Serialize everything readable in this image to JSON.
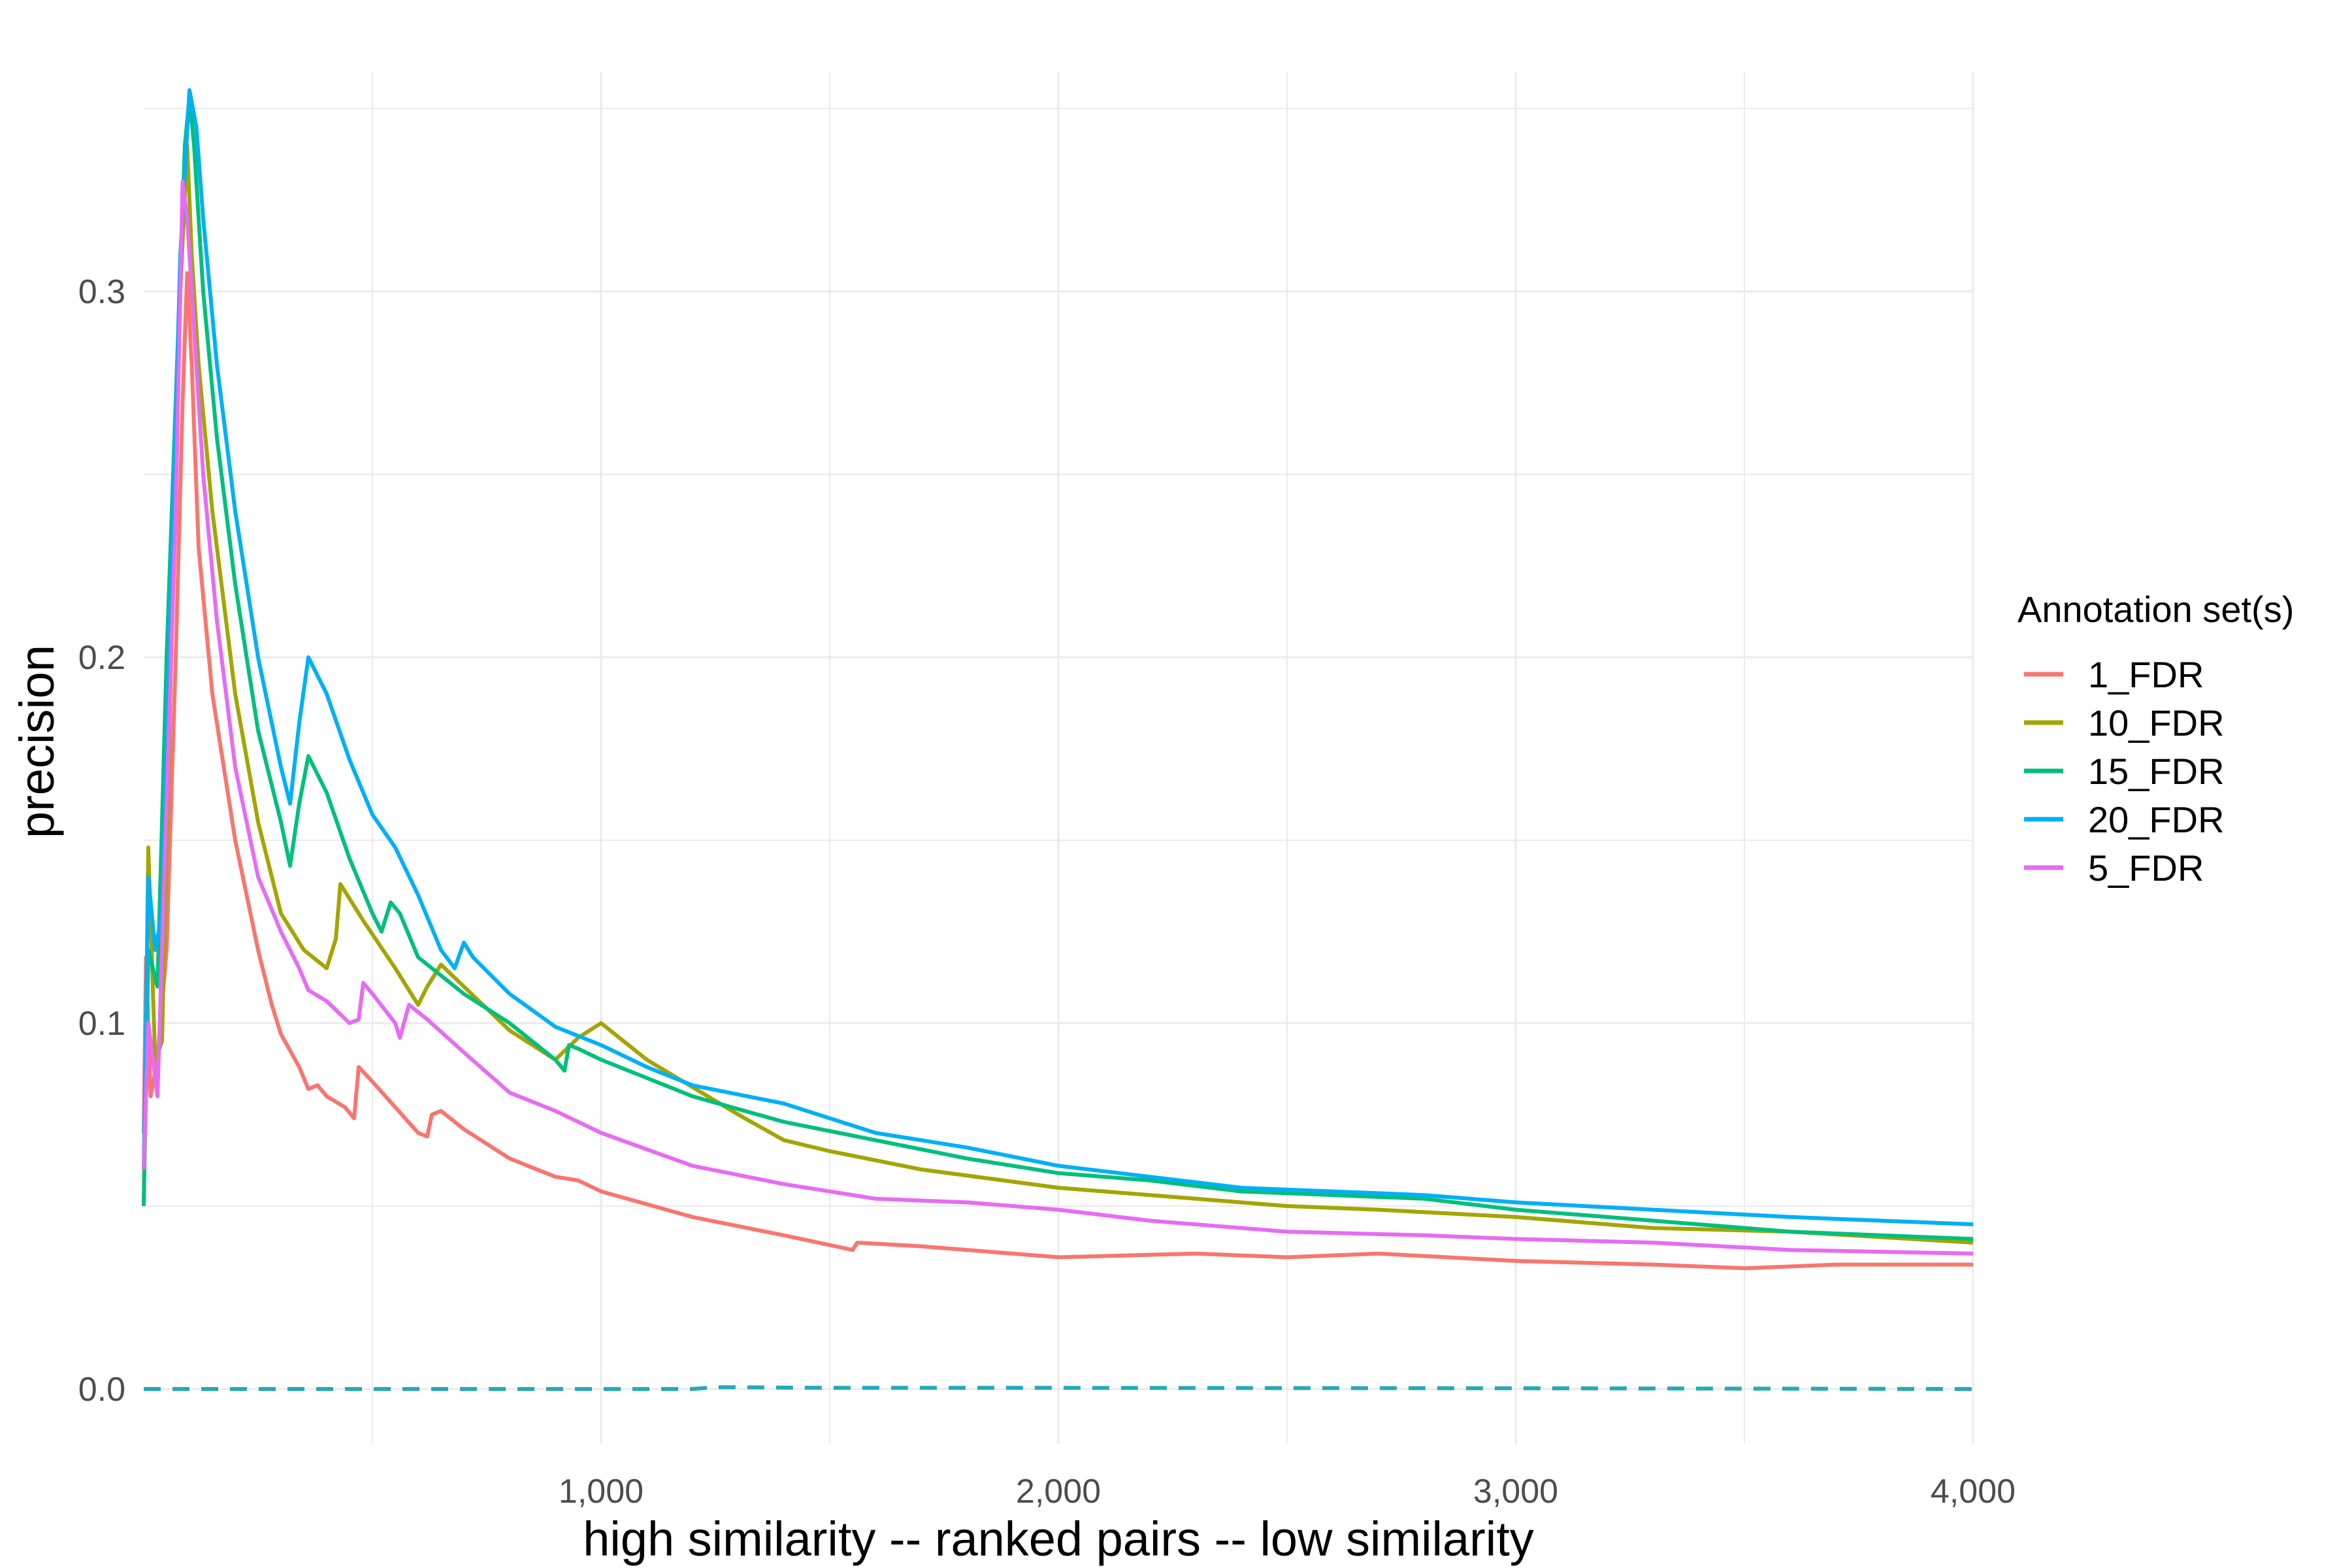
{
  "chart_data": {
    "type": "line",
    "title": "",
    "xlabel": "high similarity -- ranked pairs -- low similarity",
    "ylabel": "precision",
    "xlim": [
      0,
      4000
    ],
    "ylim": [
      -0.015,
      0.36
    ],
    "x_ticks": [
      1000,
      2000,
      3000,
      4000
    ],
    "x_tick_labels": [
      "1,000",
      "2,000",
      "3,000",
      "4,000"
    ],
    "y_ticks": [
      0.0,
      0.1,
      0.2,
      0.3
    ],
    "y_tick_labels": [
      "0.0",
      "0.1",
      "0.2",
      "0.3"
    ],
    "grid": true,
    "legend": {
      "title": "Annotation set(s)",
      "position": "right",
      "entries": [
        "1_FDR",
        "10_FDR",
        "15_FDR",
        "20_FDR",
        "5_FDR"
      ]
    },
    "series": [
      {
        "name": "1_FDR",
        "color": "#F8766D",
        "points": [
          [
            0,
            0.07
          ],
          [
            5,
            0.118
          ],
          [
            15,
            0.08
          ],
          [
            30,
            0.09
          ],
          [
            50,
            0.12
          ],
          [
            70,
            0.2
          ],
          [
            85,
            0.27
          ],
          [
            95,
            0.305
          ],
          [
            105,
            0.28
          ],
          [
            120,
            0.23
          ],
          [
            150,
            0.19
          ],
          [
            200,
            0.15
          ],
          [
            250,
            0.12
          ],
          [
            280,
            0.105
          ],
          [
            300,
            0.097
          ],
          [
            340,
            0.088
          ],
          [
            360,
            0.082
          ],
          [
            380,
            0.083
          ],
          [
            400,
            0.08
          ],
          [
            440,
            0.077
          ],
          [
            460,
            0.074
          ],
          [
            470,
            0.088
          ],
          [
            500,
            0.084
          ],
          [
            550,
            0.077
          ],
          [
            600,
            0.07
          ],
          [
            620,
            0.069
          ],
          [
            630,
            0.075
          ],
          [
            650,
            0.076
          ],
          [
            700,
            0.071
          ],
          [
            800,
            0.063
          ],
          [
            900,
            0.058
          ],
          [
            950,
            0.057
          ],
          [
            1000,
            0.054
          ],
          [
            1200,
            0.047
          ],
          [
            1400,
            0.042
          ],
          [
            1550,
            0.038
          ],
          [
            1560,
            0.04
          ],
          [
            1700,
            0.039
          ],
          [
            2000,
            0.036
          ],
          [
            2300,
            0.037
          ],
          [
            2500,
            0.036
          ],
          [
            2700,
            0.037
          ],
          [
            3000,
            0.035
          ],
          [
            3300,
            0.034
          ],
          [
            3500,
            0.033
          ],
          [
            3700,
            0.034
          ],
          [
            4000,
            0.034
          ]
        ]
      },
      {
        "name": "10_FDR",
        "color": "#A3A500",
        "points": [
          [
            0,
            0.05
          ],
          [
            10,
            0.148
          ],
          [
            25,
            0.09
          ],
          [
            40,
            0.095
          ],
          [
            60,
            0.2
          ],
          [
            80,
            0.3
          ],
          [
            95,
            0.34
          ],
          [
            105,
            0.31
          ],
          [
            120,
            0.28
          ],
          [
            150,
            0.24
          ],
          [
            200,
            0.19
          ],
          [
            250,
            0.155
          ],
          [
            300,
            0.13
          ],
          [
            350,
            0.12
          ],
          [
            400,
            0.115
          ],
          [
            420,
            0.123
          ],
          [
            430,
            0.138
          ],
          [
            480,
            0.128
          ],
          [
            550,
            0.115
          ],
          [
            600,
            0.105
          ],
          [
            620,
            0.11
          ],
          [
            650,
            0.116
          ],
          [
            700,
            0.11
          ],
          [
            800,
            0.098
          ],
          [
            900,
            0.09
          ],
          [
            950,
            0.096
          ],
          [
            1000,
            0.1
          ],
          [
            1100,
            0.09
          ],
          [
            1300,
            0.075
          ],
          [
            1400,
            0.068
          ],
          [
            1500,
            0.065
          ],
          [
            1700,
            0.06
          ],
          [
            2000,
            0.055
          ],
          [
            2300,
            0.052
          ],
          [
            2500,
            0.05
          ],
          [
            2700,
            0.049
          ],
          [
            3000,
            0.047
          ],
          [
            3300,
            0.044
          ],
          [
            3600,
            0.043
          ],
          [
            4000,
            0.04
          ]
        ]
      },
      {
        "name": "15_FDR",
        "color": "#00BF7D",
        "points": [
          [
            0,
            0.05
          ],
          [
            10,
            0.12
          ],
          [
            30,
            0.11
          ],
          [
            50,
            0.2
          ],
          [
            70,
            0.27
          ],
          [
            90,
            0.34
          ],
          [
            100,
            0.353
          ],
          [
            110,
            0.34
          ],
          [
            130,
            0.3
          ],
          [
            160,
            0.26
          ],
          [
            200,
            0.22
          ],
          [
            250,
            0.18
          ],
          [
            300,
            0.155
          ],
          [
            320,
            0.143
          ],
          [
            340,
            0.16
          ],
          [
            360,
            0.173
          ],
          [
            400,
            0.163
          ],
          [
            450,
            0.145
          ],
          [
            500,
            0.13
          ],
          [
            520,
            0.125
          ],
          [
            540,
            0.133
          ],
          [
            560,
            0.13
          ],
          [
            600,
            0.118
          ],
          [
            700,
            0.108
          ],
          [
            800,
            0.1
          ],
          [
            900,
            0.09
          ],
          [
            920,
            0.087
          ],
          [
            930,
            0.094
          ],
          [
            950,
            0.093
          ],
          [
            1000,
            0.09
          ],
          [
            1100,
            0.085
          ],
          [
            1200,
            0.08
          ],
          [
            1400,
            0.073
          ],
          [
            1600,
            0.068
          ],
          [
            1800,
            0.063
          ],
          [
            2000,
            0.059
          ],
          [
            2200,
            0.057
          ],
          [
            2400,
            0.054
          ],
          [
            2600,
            0.053
          ],
          [
            2800,
            0.052
          ],
          [
            3000,
            0.049
          ],
          [
            3300,
            0.046
          ],
          [
            3600,
            0.043
          ],
          [
            4000,
            0.041
          ]
        ]
      },
      {
        "name": "20_FDR",
        "color": "#00B0F6",
        "points": [
          [
            0,
            0.06
          ],
          [
            10,
            0.14
          ],
          [
            25,
            0.12
          ],
          [
            40,
            0.13
          ],
          [
            60,
            0.22
          ],
          [
            80,
            0.31
          ],
          [
            100,
            0.355
          ],
          [
            115,
            0.345
          ],
          [
            130,
            0.32
          ],
          [
            160,
            0.28
          ],
          [
            200,
            0.24
          ],
          [
            250,
            0.2
          ],
          [
            300,
            0.17
          ],
          [
            320,
            0.16
          ],
          [
            340,
            0.182
          ],
          [
            360,
            0.2
          ],
          [
            400,
            0.19
          ],
          [
            450,
            0.172
          ],
          [
            500,
            0.157
          ],
          [
            550,
            0.148
          ],
          [
            600,
            0.135
          ],
          [
            650,
            0.12
          ],
          [
            680,
            0.115
          ],
          [
            700,
            0.122
          ],
          [
            720,
            0.118
          ],
          [
            800,
            0.108
          ],
          [
            900,
            0.099
          ],
          [
            1000,
            0.094
          ],
          [
            1100,
            0.088
          ],
          [
            1200,
            0.083
          ],
          [
            1400,
            0.078
          ],
          [
            1600,
            0.07
          ],
          [
            1800,
            0.066
          ],
          [
            2000,
            0.061
          ],
          [
            2200,
            0.058
          ],
          [
            2400,
            0.055
          ],
          [
            2600,
            0.054
          ],
          [
            2800,
            0.053
          ],
          [
            3000,
            0.051
          ],
          [
            3300,
            0.049
          ],
          [
            3600,
            0.047
          ],
          [
            4000,
            0.045
          ]
        ]
      },
      {
        "name": "5_FDR",
        "color": "#E76BF3",
        "points": [
          [
            0,
            0.06
          ],
          [
            10,
            0.1
          ],
          [
            30,
            0.08
          ],
          [
            50,
            0.16
          ],
          [
            70,
            0.24
          ],
          [
            85,
            0.33
          ],
          [
            95,
            0.32
          ],
          [
            110,
            0.29
          ],
          [
            130,
            0.25
          ],
          [
            160,
            0.21
          ],
          [
            200,
            0.17
          ],
          [
            250,
            0.14
          ],
          [
            300,
            0.125
          ],
          [
            340,
            0.115
          ],
          [
            360,
            0.109
          ],
          [
            400,
            0.106
          ],
          [
            450,
            0.1
          ],
          [
            470,
            0.101
          ],
          [
            480,
            0.111
          ],
          [
            500,
            0.108
          ],
          [
            550,
            0.1
          ],
          [
            560,
            0.096
          ],
          [
            580,
            0.105
          ],
          [
            620,
            0.101
          ],
          [
            700,
            0.092
          ],
          [
            800,
            0.081
          ],
          [
            900,
            0.076
          ],
          [
            1000,
            0.07
          ],
          [
            1200,
            0.061
          ],
          [
            1400,
            0.056
          ],
          [
            1600,
            0.052
          ],
          [
            1800,
            0.051
          ],
          [
            2000,
            0.049
          ],
          [
            2200,
            0.046
          ],
          [
            2500,
            0.043
          ],
          [
            2800,
            0.042
          ],
          [
            3000,
            0.041
          ],
          [
            3300,
            0.04
          ],
          [
            3600,
            0.038
          ],
          [
            4000,
            0.037
          ]
        ]
      },
      {
        "name": "",
        "color": "#26A9B8",
        "dashed": true,
        "points": [
          [
            0,
            0.0
          ],
          [
            1200,
            0.0
          ],
          [
            1250,
            0.0005
          ],
          [
            1500,
            0.0003
          ],
          [
            2000,
            0.0003
          ],
          [
            3000,
            0.0002
          ],
          [
            4000,
            0.0
          ]
        ]
      }
    ]
  }
}
